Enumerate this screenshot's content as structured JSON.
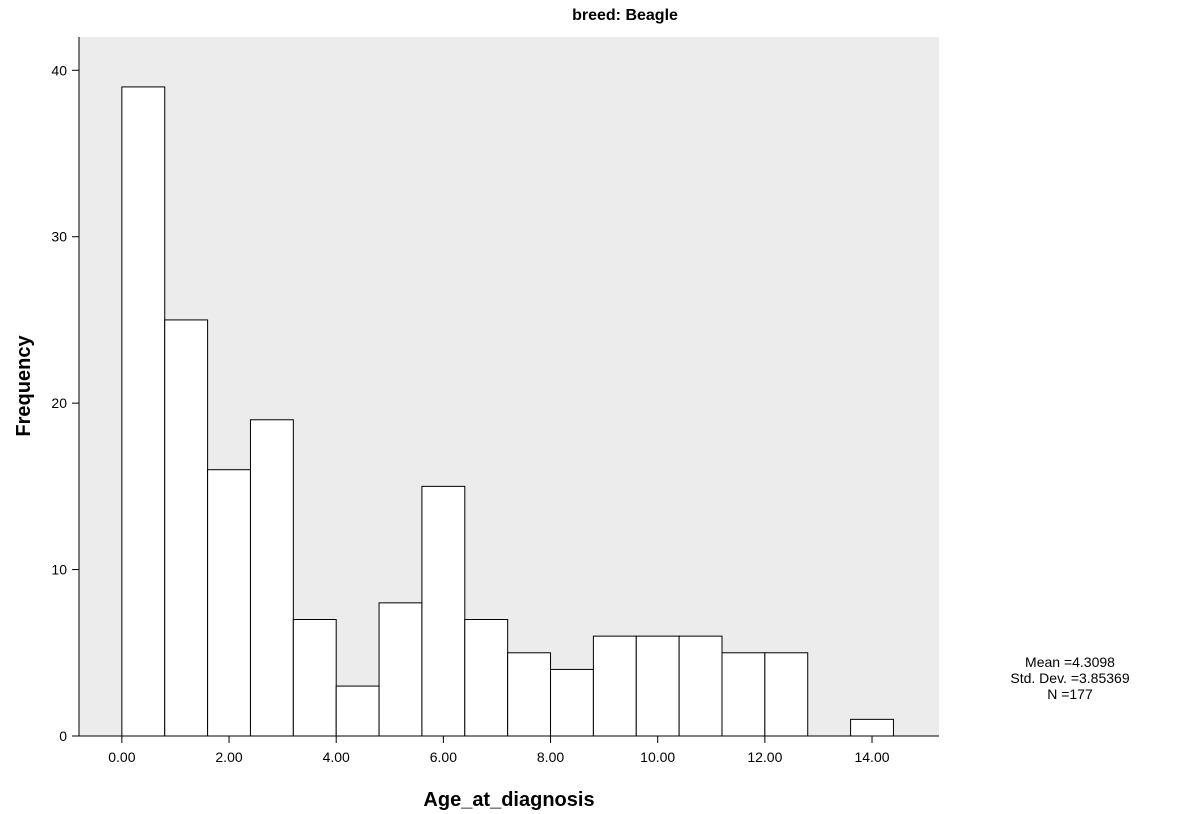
{
  "chart_data": {
    "type": "bar",
    "title": "breed: Beagle",
    "xlabel": "Age_at_diagnosis",
    "ylabel": "Frequency",
    "bins": [
      {
        "start": 0.0,
        "end": 0.8,
        "count": 39
      },
      {
        "start": 0.8,
        "end": 1.6,
        "count": 25
      },
      {
        "start": 1.6,
        "end": 2.4,
        "count": 16
      },
      {
        "start": 2.4,
        "end": 3.2,
        "count": 19
      },
      {
        "start": 3.2,
        "end": 4.0,
        "count": 7
      },
      {
        "start": 4.0,
        "end": 4.8,
        "count": 3
      },
      {
        "start": 4.8,
        "end": 5.6,
        "count": 8
      },
      {
        "start": 5.6,
        "end": 6.4,
        "count": 15
      },
      {
        "start": 6.4,
        "end": 7.2,
        "count": 7
      },
      {
        "start": 7.2,
        "end": 8.0,
        "count": 5
      },
      {
        "start": 8.0,
        "end": 8.8,
        "count": 4
      },
      {
        "start": 8.8,
        "end": 9.6,
        "count": 6
      },
      {
        "start": 9.6,
        "end": 10.4,
        "count": 6
      },
      {
        "start": 10.4,
        "end": 11.2,
        "count": 6
      },
      {
        "start": 11.2,
        "end": 12.0,
        "count": 5
      },
      {
        "start": 12.0,
        "end": 12.8,
        "count": 5
      },
      {
        "start": 12.8,
        "end": 13.6,
        "count": 0
      },
      {
        "start": 13.6,
        "end": 14.4,
        "count": 1
      }
    ],
    "xticks": [
      {
        "value": 0,
        "label": "0.00"
      },
      {
        "value": 2,
        "label": "2.00"
      },
      {
        "value": 4,
        "label": "4.00"
      },
      {
        "value": 6,
        "label": "6.00"
      },
      {
        "value": 8,
        "label": "8.00"
      },
      {
        "value": 10,
        "label": "10.00"
      },
      {
        "value": 12,
        "label": "12.00"
      },
      {
        "value": 14,
        "label": "14.00"
      }
    ],
    "yticks": [
      {
        "value": 0,
        "label": "0"
      },
      {
        "value": 10,
        "label": "10"
      },
      {
        "value": 20,
        "label": "20"
      },
      {
        "value": 30,
        "label": "30"
      },
      {
        "value": 40,
        "label": "40"
      }
    ],
    "xlim": [
      -0.8,
      15.25
    ],
    "ylim": [
      0,
      42
    ],
    "stats": {
      "mean": "Mean =4.3098",
      "std": "Std. Dev. =3.85369",
      "n": "N =177"
    },
    "colors": {
      "plot_background": "#ececec",
      "bar_fill": "#ffffff",
      "bar_stroke": "#000000",
      "axis": "#000000"
    }
  }
}
